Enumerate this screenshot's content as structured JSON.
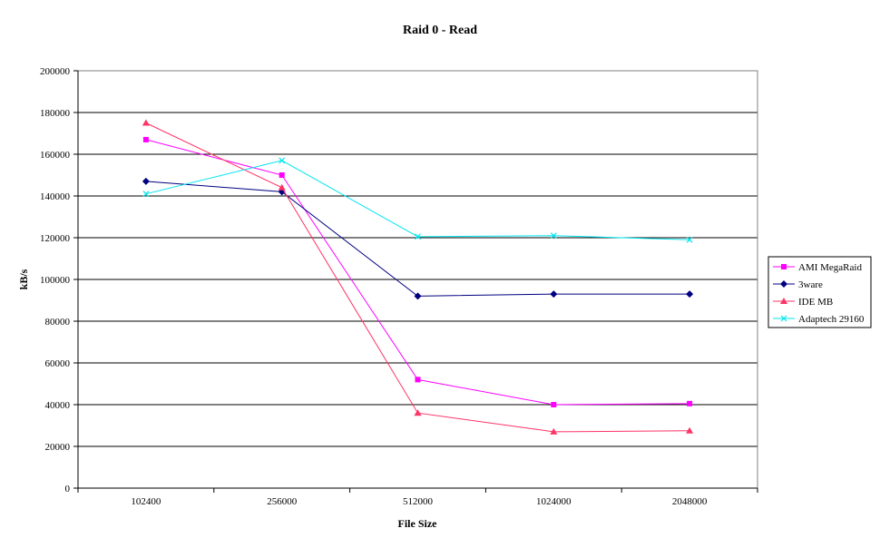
{
  "chart_data": {
    "type": "line",
    "title": "Raid 0 - Read",
    "xlabel": "File Size",
    "ylabel": "kB/s",
    "categories": [
      "102400",
      "256000",
      "512000",
      "1024000",
      "2048000"
    ],
    "ylim": [
      0,
      200000
    ],
    "y_ticks": [
      "0",
      "20000",
      "40000",
      "60000",
      "80000",
      "100000",
      "120000",
      "140000",
      "160000",
      "180000",
      "200000"
    ],
    "grid": "horizontal",
    "legend_position": "right",
    "series": [
      {
        "name": "AMI MegaRaid",
        "color": "#ff00ff",
        "marker": "square",
        "values": [
          167000,
          150000,
          52000,
          40000,
          40500
        ]
      },
      {
        "name": "3ware",
        "color": "#000080",
        "marker": "diamond",
        "values": [
          147000,
          142000,
          92000,
          93000,
          93000
        ]
      },
      {
        "name": "IDE MB",
        "color": "#ff3366",
        "marker": "triangle",
        "values": [
          175000,
          144000,
          36000,
          27000,
          27500
        ]
      },
      {
        "name": "Adaptech 29160",
        "color": "#00e5ee",
        "marker": "x",
        "values": [
          141000,
          157000,
          120500,
          121000,
          119000
        ]
      }
    ]
  }
}
